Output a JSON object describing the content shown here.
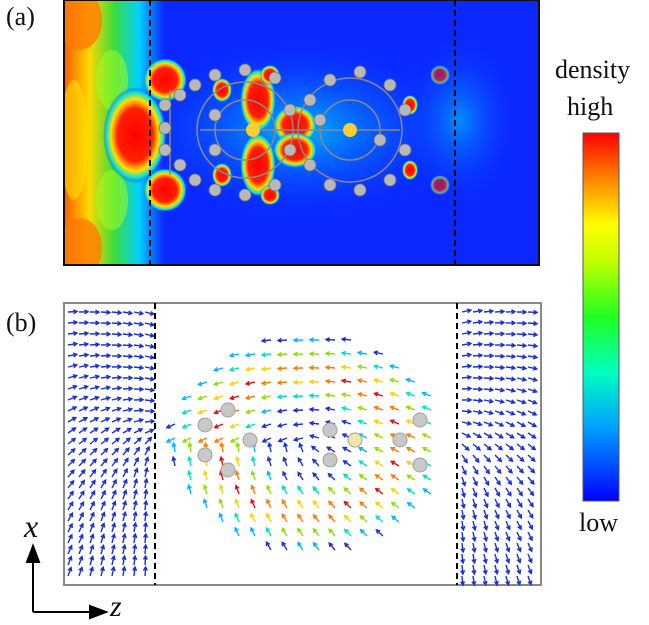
{
  "panel_labels": {
    "a": "(a)",
    "b": "(b)"
  },
  "colorbar": {
    "title": "density",
    "high_label": "high",
    "low_label": "low",
    "stops": [
      "#0000ff",
      "#00bfff",
      "#00ff80",
      "#7fff00",
      "#ffff00",
      "#ff8000",
      "#ff0000"
    ]
  },
  "axes": {
    "x": "x",
    "z": "z"
  },
  "colors": {
    "field_low": "#1e28e6",
    "field_high": "#e31212",
    "atom_carbon": "#a8a8a8",
    "atom_metal": "#f5cf33",
    "arrow_low": "#1b2fd8"
  }
}
